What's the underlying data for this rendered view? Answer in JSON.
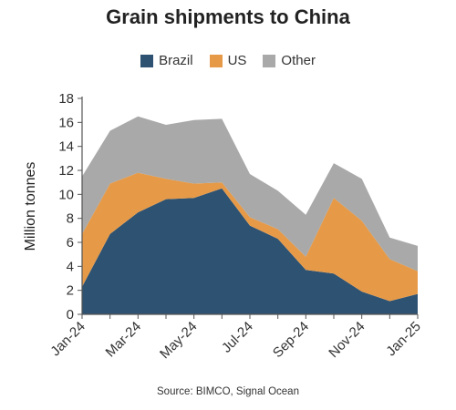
{
  "chart_data": {
    "type": "area",
    "stacked": true,
    "title": "Grain shipments to China",
    "ylabel": "Million tonnes",
    "xlabel": "",
    "ylim": [
      0,
      18
    ],
    "yticks": [
      0,
      2,
      4,
      6,
      8,
      10,
      12,
      14,
      16,
      18
    ],
    "grid": false,
    "legend_position": "top",
    "x": [
      "Jan-24",
      "Feb-24",
      "Mar-24",
      "Apr-24",
      "May-24",
      "Jun-24",
      "Jul-24",
      "Aug-24",
      "Sep-24",
      "Oct-24",
      "Nov-24",
      "Dec-24",
      "Jan-25"
    ],
    "xtick_labels": [
      "Jan-24",
      "Mar-24",
      "May-24",
      "Jul-24",
      "Sep-24",
      "Nov-24",
      "Jan-25"
    ],
    "series": [
      {
        "name": "Brazil",
        "color": "#2e5272",
        "values": [
          2.3,
          6.7,
          8.5,
          9.6,
          9.7,
          10.5,
          7.4,
          6.3,
          3.7,
          3.4,
          1.9,
          1.1,
          1.7
        ]
      },
      {
        "name": "US",
        "color": "#e69a48",
        "values": [
          4.4,
          4.2,
          3.3,
          1.7,
          1.2,
          0.5,
          0.7,
          0.8,
          1.1,
          6.3,
          5.9,
          3.5,
          1.9
        ]
      },
      {
        "name": "Other",
        "color": "#a9a9a9",
        "values": [
          4.8,
          4.4,
          4.7,
          4.5,
          5.3,
          5.3,
          3.6,
          3.2,
          3.5,
          2.9,
          3.5,
          1.8,
          2.1
        ]
      }
    ],
    "source": "Source: BIMCO, Signal Ocean"
  }
}
